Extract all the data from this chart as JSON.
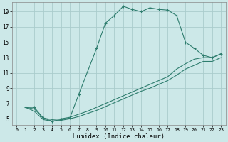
{
  "xlabel": "Humidex (Indice chaleur)",
  "bg_color": "#cce8e8",
  "grid_color": "#aacccc",
  "line_color": "#2e7d6e",
  "xlim": [
    -0.5,
    23.5
  ],
  "ylim": [
    4.2,
    20.2
  ],
  "xticks": [
    0,
    1,
    2,
    3,
    4,
    5,
    6,
    7,
    8,
    9,
    10,
    11,
    12,
    13,
    14,
    15,
    16,
    17,
    18,
    19,
    20,
    21,
    22,
    23
  ],
  "yticks": [
    5,
    7,
    9,
    11,
    13,
    15,
    17,
    19
  ],
  "line1_x": [
    1,
    2,
    3,
    4,
    5,
    6,
    7,
    8,
    9,
    10,
    11,
    12,
    13,
    14,
    15,
    16,
    17,
    18,
    19,
    20,
    21,
    22,
    23
  ],
  "line1_y": [
    6.5,
    6.5,
    5.1,
    4.7,
    4.9,
    5.1,
    8.2,
    11.2,
    14.2,
    17.5,
    18.5,
    19.7,
    19.3,
    19.0,
    19.5,
    19.3,
    19.2,
    18.5,
    15.0,
    14.2,
    13.3,
    13.0,
    13.5
  ],
  "line2_x": [
    1,
    2,
    3,
    4,
    5,
    6,
    7,
    8,
    9,
    10,
    11,
    12,
    13,
    14,
    15,
    16,
    17,
    18,
    19,
    20,
    21,
    22,
    23
  ],
  "line2_y": [
    6.5,
    6.3,
    5.1,
    4.9,
    5.0,
    5.2,
    5.6,
    6.0,
    6.5,
    7.0,
    7.5,
    8.0,
    8.5,
    9.0,
    9.5,
    10.0,
    10.5,
    11.5,
    12.2,
    12.8,
    13.0,
    13.0,
    13.5
  ],
  "line3_x": [
    1,
    2,
    3,
    4,
    5,
    6,
    7,
    8,
    9,
    10,
    11,
    12,
    13,
    14,
    15,
    16,
    17,
    18,
    19,
    20,
    21,
    22,
    23
  ],
  "line3_y": [
    6.5,
    6.0,
    4.9,
    4.7,
    4.8,
    5.0,
    5.3,
    5.7,
    6.1,
    6.6,
    7.1,
    7.6,
    8.1,
    8.6,
    9.0,
    9.5,
    10.0,
    10.7,
    11.5,
    12.0,
    12.5,
    12.5,
    13.0
  ]
}
